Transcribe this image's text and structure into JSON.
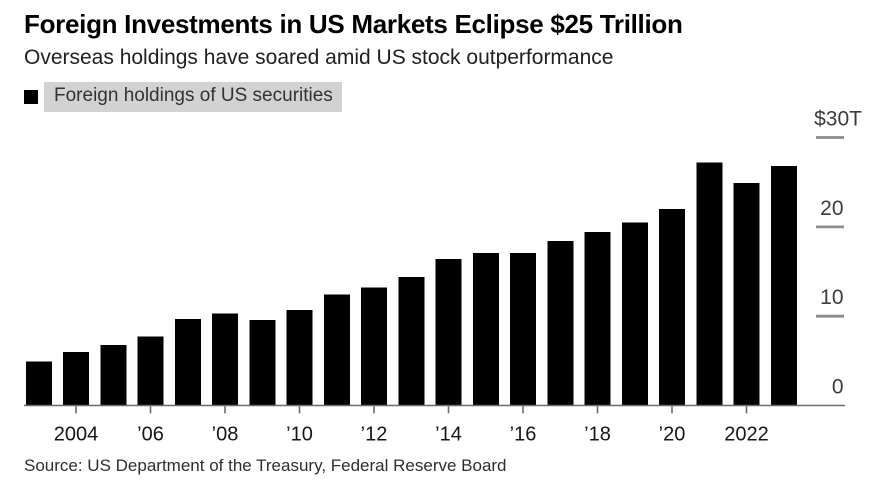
{
  "header": {
    "title": "Foreign Investments in US Markets Eclipse $25 Trillion",
    "subtitle": "Overseas holdings have soared amid US stock outperformance"
  },
  "legend": {
    "label": "Foreign holdings of US securities",
    "swatch_color": "#000000",
    "highlight_color": "#d2d2d2"
  },
  "source": "Source: US Department of the Treasury, Federal Reserve Board",
  "colors": {
    "bar": "#000000",
    "axis_line": "#6b6b6b",
    "tick_dash": "#8c8c8c",
    "y_label": "#3c3c3c",
    "x_label": "#161616",
    "background": "#ffffff"
  },
  "chart_data": {
    "type": "bar",
    "title": "Foreign Investments in US Markets Eclipse $25 Trillion",
    "subtitle": "Overseas holdings have soared amid US stock outperformance",
    "series_name": "Foreign holdings of US securities",
    "unit": "USD trillions",
    "categories": [
      2003,
      2004,
      2005,
      2006,
      2007,
      2008,
      2009,
      2010,
      2011,
      2012,
      2013,
      2014,
      2015,
      2016,
      2017,
      2018,
      2019,
      2020,
      2021,
      2022,
      2023
    ],
    "values": [
      4.9,
      6.0,
      6.8,
      7.7,
      9.7,
      10.3,
      9.6,
      10.7,
      12.4,
      13.2,
      14.4,
      16.4,
      17.1,
      17.1,
      18.4,
      19.4,
      20.5,
      22.0,
      27.2,
      24.9,
      26.8
    ],
    "x_ticks": [
      {
        "index": 1,
        "label": "2004"
      },
      {
        "index": 3,
        "label": "’06"
      },
      {
        "index": 5,
        "label": "’08"
      },
      {
        "index": 7,
        "label": "’10"
      },
      {
        "index": 9,
        "label": "’12"
      },
      {
        "index": 11,
        "label": "’14"
      },
      {
        "index": 13,
        "label": "’16"
      },
      {
        "index": 15,
        "label": "’18"
      },
      {
        "index": 17,
        "label": "’20"
      },
      {
        "index": 19,
        "label": "2022"
      }
    ],
    "y_ticks": [
      {
        "value": 0,
        "label": "0"
      },
      {
        "value": 10,
        "label": "10"
      },
      {
        "value": 20,
        "label": "20"
      },
      {
        "value": 30,
        "label": "$30T"
      }
    ],
    "ylim": [
      0,
      30
    ],
    "grid": "right-side tick dashes only",
    "legend_position": "top-left"
  }
}
